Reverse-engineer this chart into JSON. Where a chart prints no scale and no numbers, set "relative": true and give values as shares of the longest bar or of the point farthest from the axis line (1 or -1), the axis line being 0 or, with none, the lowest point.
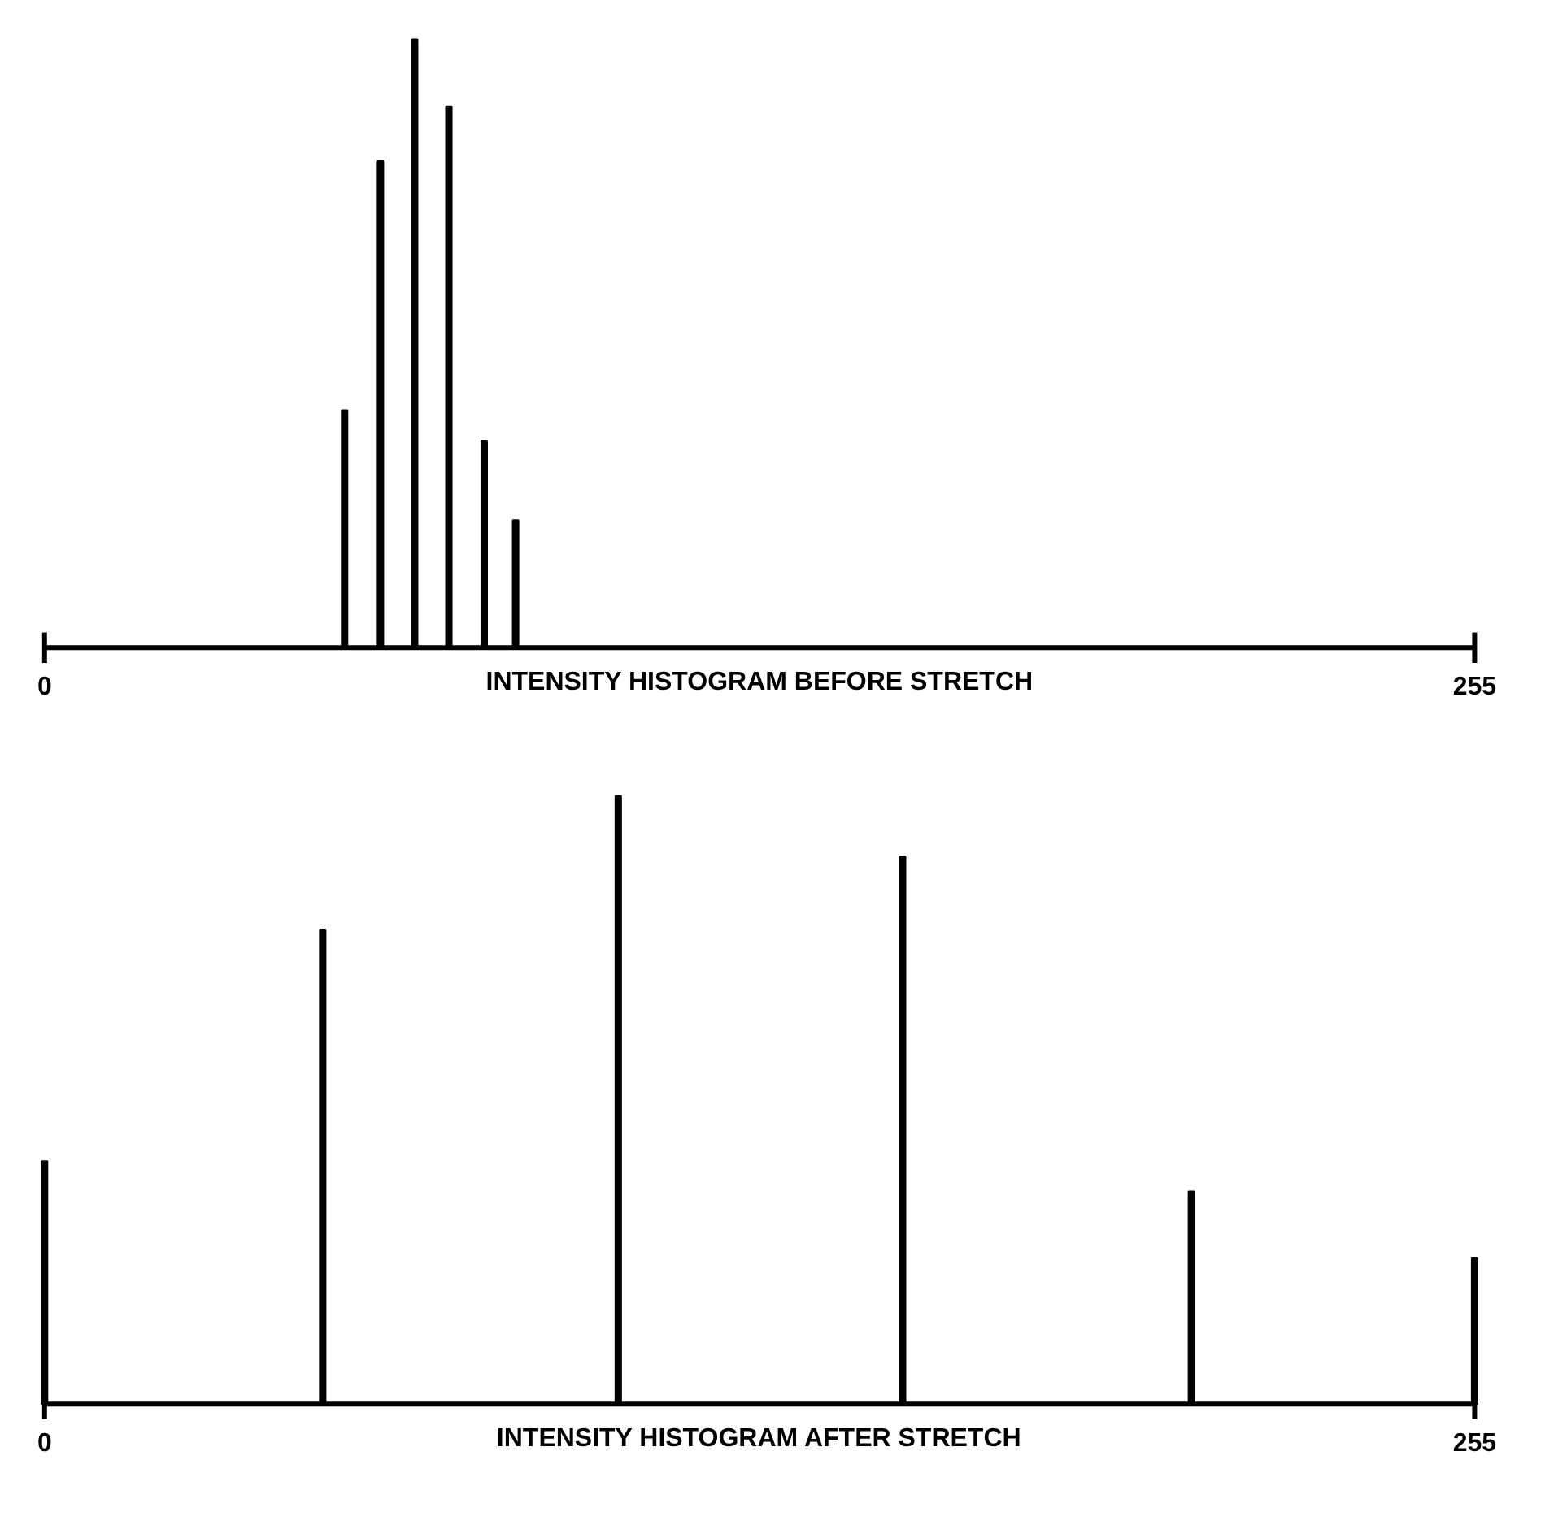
{
  "chart_data": [
    {
      "type": "bar",
      "relative": true,
      "x": [
        53.5,
        59.9,
        66.0,
        72.1,
        78.4,
        84.0
      ],
      "values": [
        0.39,
        0.8,
        1.0,
        0.89,
        0.34,
        0.21
      ],
      "color": "#000000",
      "xlim": [
        0,
        255
      ],
      "xticks": [
        0,
        255
      ],
      "xlabel": "INTENSITY HISTOGRAM BEFORE STRETCH",
      "grid": false
    },
    {
      "type": "bar",
      "relative": true,
      "x": [
        0,
        49.6,
        102.3,
        153.0,
        204.5,
        255
      ],
      "values": [
        0.4,
        0.78,
        1.0,
        0.9,
        0.35,
        0.24
      ],
      "color": "#000000",
      "xlim": [
        0,
        255
      ],
      "xticks": [
        0,
        255
      ],
      "xlabel": "INTENSITY HISTOGRAM AFTER STRETCH",
      "grid": false
    }
  ]
}
